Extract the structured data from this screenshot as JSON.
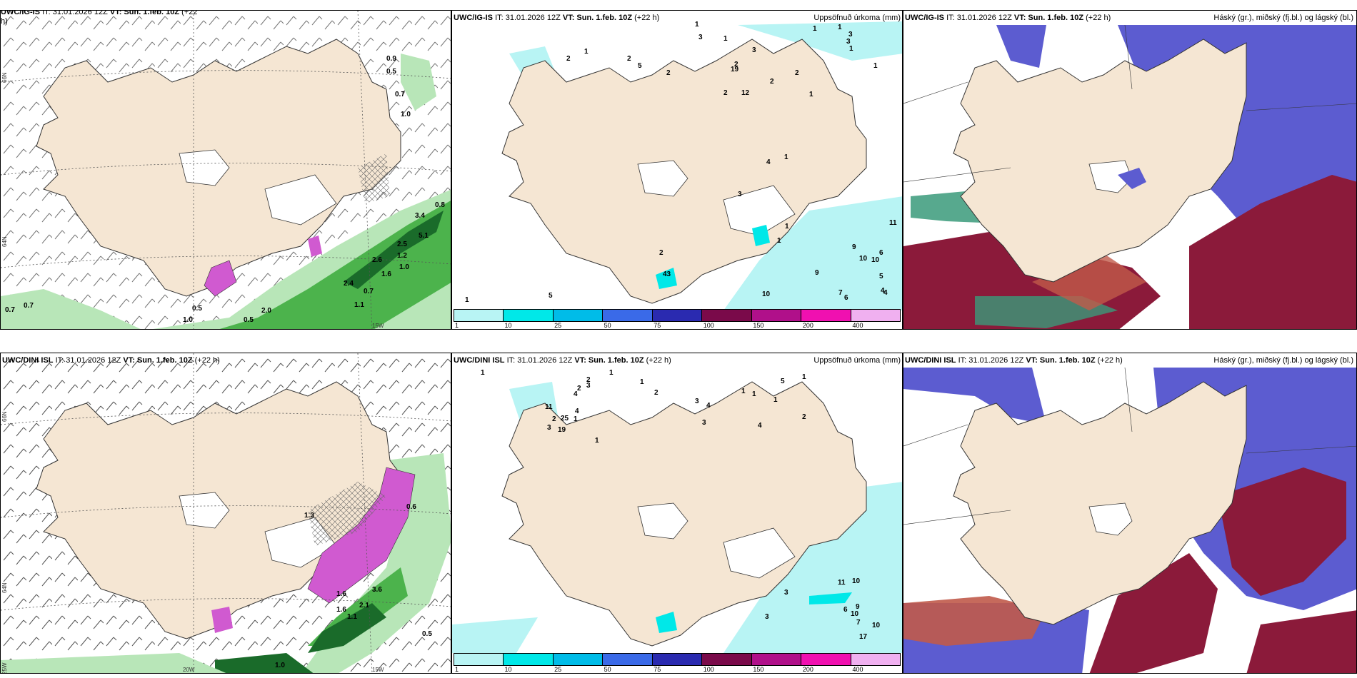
{
  "colors": {
    "land": "#f5e6d3",
    "sea": "#ffffff",
    "green_light": "#b8e6b8",
    "green_mid": "#4cb34c",
    "green_dark": "#1a6b2a",
    "magenta": "#d05ad0",
    "cloud_blue": "#5c5cd0",
    "cloud_red": "#8b1a3a",
    "cloud_green": "#3a9a7a"
  },
  "header_top_left": {
    "model": "UWC/IG-IS",
    "run": "IT: 31.01.2026 12Z",
    "vt_label": "VT:",
    "vt": "Sun. 1.feb. 10Z",
    "lead": "(+22",
    "lead2": "h)"
  },
  "header_top_mid": {
    "model": "UWC/IG-IS",
    "run": "IT: 31.01.2026 12Z",
    "vt_label": "VT:",
    "vt": "Sun. 1.feb. 10Z",
    "lead": "(+22 h)",
    "right": "Uppsöfnuð úrkoma (mm)"
  },
  "header_top_right": {
    "model": "UWC/IG-IS",
    "run": "IT: 31.01.2026 12Z",
    "vt_label": "VT:",
    "vt": "Sun. 1.feb. 10Z",
    "lead": "(+22 h)",
    "right": "Háský (gr.), miðský (fj.bl.) og lágský (bl.)"
  },
  "header_bot_left": {
    "model": "UWC/DINI ISL",
    "run": "IT: 31.01.2026 12Z",
    "vt_label": "VT:",
    "vt": "Sun. 1.feb. 10Z",
    "lead": "(+22 h)"
  },
  "header_bot_mid": {
    "model": "UWC/DINI ISL",
    "run": "IT: 31.01.2026 12Z",
    "vt_label": "VT:",
    "vt": "Sun. 1.feb. 10Z",
    "lead": "(+22 h)",
    "right": "Uppsöfnuð úrkoma (mm)"
  },
  "header_bot_right": {
    "model": "UWC/DINI ISL",
    "run": "IT: 31.01.2026 12Z",
    "vt_label": "VT:",
    "vt": "Sun. 1.feb. 10Z",
    "lead": "(+22 h)",
    "right": "Háský (gr.), miðský (fj.bl.) og lágský (bl.)"
  },
  "colorbar": {
    "ticks": [
      "1",
      "10",
      "25",
      "50",
      "75",
      "100",
      "150",
      "200",
      "400"
    ],
    "colors": [
      "#b8f4f4",
      "#00e8e8",
      "#00bce8",
      "#3a6ae8",
      "#2a2ab0",
      "#7a0a4a",
      "#b0108a",
      "#f010b0",
      "#f0b0f0"
    ]
  },
  "lat_labels": {
    "n66": "66N",
    "n65": "65N",
    "n64": "64N",
    "n63": "63N",
    "w15": "15W",
    "w20": "20W",
    "w25": "25W"
  },
  "tl_labels": [
    "0.9",
    "0.5",
    "0.7",
    "1.0",
    "3.4",
    "0.8",
    "5.1",
    "2.5",
    "1.2",
    "1.0",
    "2.6",
    "1.6",
    "2.4",
    "0.7",
    "1.1",
    "0.7",
    "0.7",
    "0.5",
    "1.0",
    "0.5",
    "2.0"
  ],
  "bl_labels": [
    "1.3",
    "0.6",
    "1.6",
    "3.6",
    "2.1",
    "1.6",
    "1.1",
    "0.5",
    "1.0"
  ],
  "tm_labels": [
    "1",
    "1",
    "2",
    "2",
    "1",
    "2",
    "5",
    "3",
    "3",
    "1",
    "3",
    "19",
    "12",
    "2",
    "1",
    "3",
    "1",
    "1",
    "2",
    "2",
    "2",
    "1",
    "4",
    "1",
    "3",
    "1",
    "11",
    "9",
    "10",
    "10",
    "6",
    "5",
    "4",
    "4",
    "9",
    "7",
    "6",
    "10",
    "1",
    "2",
    "43",
    "1",
    "5"
  ],
  "bm_labels": [
    "1",
    "1",
    "1",
    "2",
    "2",
    "2",
    "4",
    "11",
    "3",
    "4",
    "1",
    "25",
    "19",
    "2",
    "3",
    "1",
    "3",
    "4",
    "1",
    "1",
    "1",
    "4",
    "5",
    "1",
    "2",
    "3",
    "3",
    "11",
    "10",
    "9",
    "10",
    "7",
    "17",
    "6",
    "10",
    "3"
  ]
}
